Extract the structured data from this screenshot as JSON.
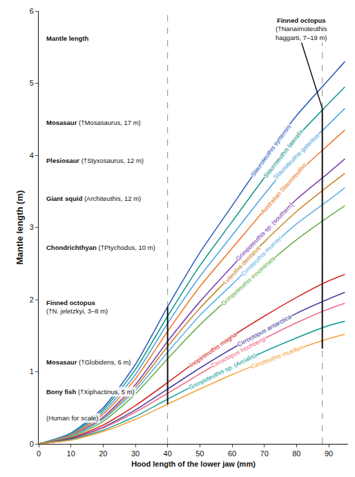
{
  "chart_data": {
    "type": "line",
    "x_label": "Hood length of the lower jaw (mm)",
    "y_label": "Mantle length (m)",
    "xlim": [
      0,
      96
    ],
    "ylim": [
      0,
      6
    ],
    "xticks": [
      0,
      10,
      20,
      30,
      40,
      50,
      60,
      70,
      80,
      90
    ],
    "yticks": [
      0,
      1,
      2,
      3,
      4,
      5,
      6
    ],
    "grid": false,
    "x": [
      0,
      10,
      20,
      30,
      40,
      50,
      60,
      70,
      80,
      90,
      95
    ],
    "series": [
      {
        "name": "Stauroteuthis syrtensis",
        "color": "#2f5fbf",
        "values": [
          0,
          0.15,
          0.5,
          1.1,
          1.9,
          2.65,
          3.3,
          3.95,
          4.55,
          5.05,
          5.3
        ]
      },
      {
        "name": "Stauroteuthis lateralis",
        "color": "#17998a",
        "values": [
          0,
          0.14,
          0.47,
          1.03,
          1.77,
          2.47,
          3.08,
          3.69,
          4.25,
          4.72,
          4.95
        ]
      },
      {
        "name": "Stauroteuthis galeritus",
        "color": "#4da6e0",
        "values": [
          0,
          0.13,
          0.44,
          0.96,
          1.67,
          2.32,
          2.89,
          3.46,
          3.99,
          4.43,
          4.65
        ]
      },
      {
        "name": "Australian Stauroteuthis",
        "color": "#f07a2a",
        "values": [
          0,
          0.12,
          0.41,
          0.9,
          1.56,
          2.18,
          2.71,
          3.24,
          3.74,
          4.15,
          4.35
        ]
      },
      {
        "name": "Grimpoteuthis sp. (southern)",
        "color": "#7b3fb5",
        "values": [
          0,
          0.11,
          0.37,
          0.82,
          1.42,
          1.97,
          2.46,
          2.94,
          3.39,
          3.76,
          3.95
        ]
      },
      {
        "name": "Luteuthis dentatus",
        "color": "#c8862a",
        "values": [
          0,
          0.11,
          0.35,
          0.78,
          1.35,
          1.88,
          2.34,
          2.8,
          3.22,
          3.58,
          3.75
        ]
      },
      {
        "name": "Cirroteuthis murrayi",
        "color": "#5fb0e8",
        "values": [
          0,
          0.1,
          0.34,
          0.74,
          1.27,
          1.78,
          2.21,
          2.65,
          3.05,
          3.38,
          3.55
        ]
      },
      {
        "name": "Grimpoteuthis innominata",
        "color": "#6ab04c",
        "values": [
          0,
          0.09,
          0.31,
          0.69,
          1.18,
          1.65,
          2.06,
          2.46,
          2.83,
          3.15,
          3.3
        ]
      },
      {
        "name": "Inopinteuthis magna",
        "color": "#d62728",
        "values": [
          0,
          0.08,
          0.26,
          0.53,
          0.85,
          1.18,
          1.49,
          1.77,
          2.03,
          2.26,
          2.35
        ]
      },
      {
        "name": "Cirroctopus antarctica",
        "color": "#4b3f9e",
        "values": [
          0,
          0.07,
          0.23,
          0.47,
          0.76,
          1.05,
          1.32,
          1.57,
          1.81,
          2.01,
          2.1
        ]
      },
      {
        "name": "Cirroctopus hochbergi",
        "color": "#ef6f8a",
        "values": [
          0,
          0.06,
          0.22,
          0.44,
          0.7,
          0.97,
          1.23,
          1.46,
          1.68,
          1.87,
          1.95
        ]
      },
      {
        "name": "Grimpoteuthis sp. (Arcialis)",
        "color": "#1aa39a",
        "values": [
          0,
          0.06,
          0.19,
          0.38,
          0.62,
          0.85,
          1.07,
          1.28,
          1.47,
          1.64,
          1.7
        ]
      },
      {
        "name": "Cirroteuthis muelleri",
        "color": "#f4a23a",
        "values": [
          0,
          0.05,
          0.17,
          0.34,
          0.55,
          0.76,
          0.96,
          1.14,
          1.31,
          1.46,
          1.52
        ]
      }
    ],
    "reference_x": [
      40,
      88
    ],
    "ranges": [
      {
        "x": 40,
        "y": [
          0.55,
          1.9
        ]
      },
      {
        "x": 88,
        "y": [
          1.32,
          4.65
        ],
        "label": "Finned octopus (†Nanaimoteuthis haggarti, 7–19 m)"
      }
    ],
    "figure_labels": [
      "Mantle length",
      "Mosasaur (†Mosasaurus, 17 m)",
      "Plesiosaur (†Styxosaurus, 12 m)",
      "Giant squid (Architeuthis, 12 m)",
      "Chondrichthyan (†Ptychodus, 10 m)",
      "Finned octopus (†N. jeletzkyi, 3–8 m)",
      "Mosasaur (†Globidens, 6 m)",
      "Bony fish (†Xiphactinus, 5 m)",
      "(Human for scale)"
    ]
  }
}
